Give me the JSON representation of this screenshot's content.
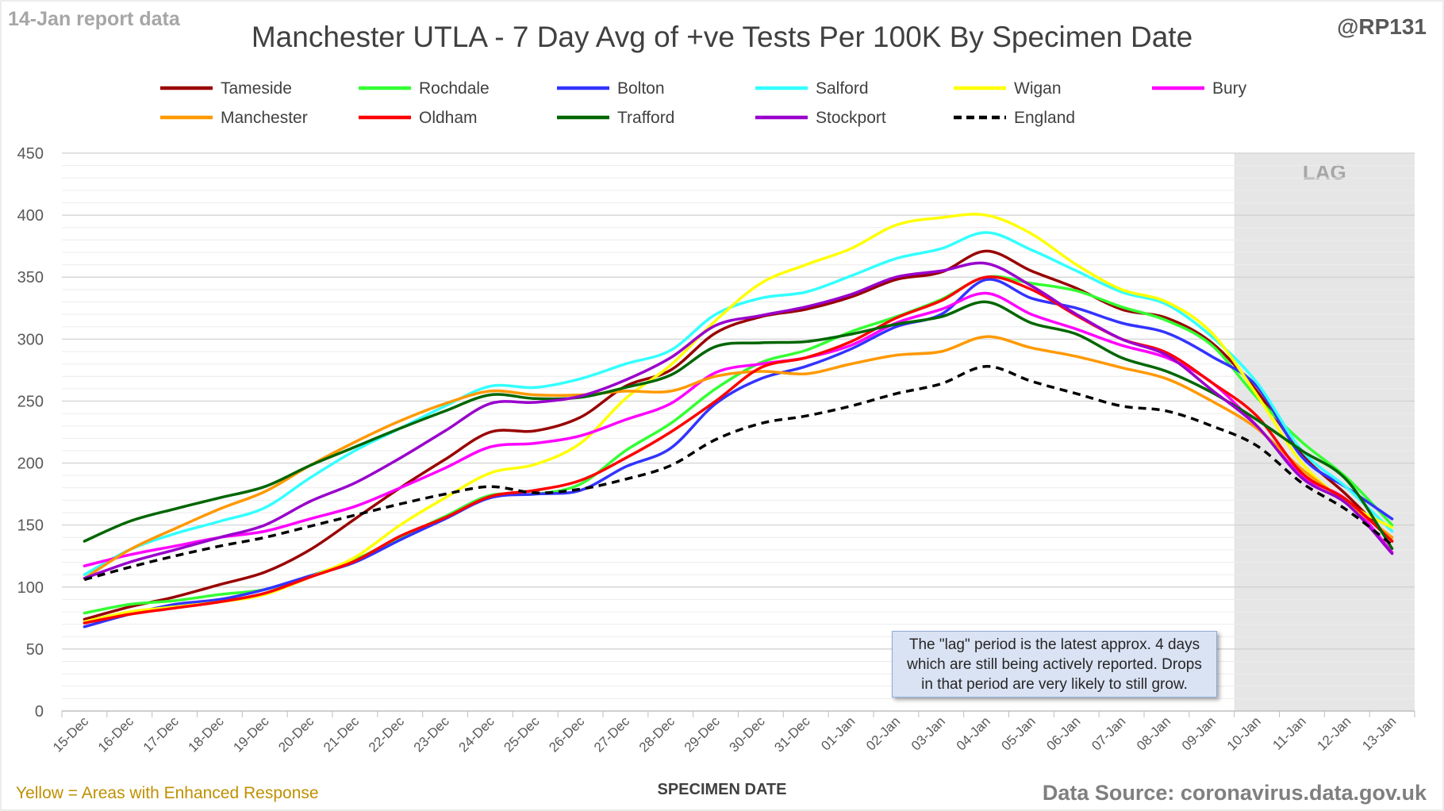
{
  "header": {
    "report_note": "14-Jan report data",
    "title": "Manchester UTLA - 7 Day Avg of +ve Tests Per 100K By Specimen Date",
    "handle": "@RP131"
  },
  "footer": {
    "enhanced_note": "Yellow = Areas with Enhanced Response",
    "source": "Data Source: coronavirus.data.gov.uk"
  },
  "annotation": {
    "lines": [
      "The \"lag\" period is the latest approx. 4 days",
      "which are still being actively reported.  Drops",
      "in that period are very likely to still grow."
    ]
  },
  "chart_data": {
    "type": "line",
    "title": "Manchester UTLA - 7 Day Avg of +ve Tests Per 100K By Specimen Date",
    "xlabel": "SPECIMEN DATE",
    "ylabel": "",
    "ylim": [
      0,
      450
    ],
    "yticks": [
      0,
      50,
      100,
      150,
      200,
      250,
      300,
      350,
      400,
      450
    ],
    "grid": true,
    "legend_position": "top",
    "lag_region": {
      "label": "LAG",
      "from": "10-Jan",
      "to": "13-Jan",
      "color": "#e6e6e6"
    },
    "categories": [
      "15-Dec",
      "16-Dec",
      "17-Dec",
      "18-Dec",
      "19-Dec",
      "20-Dec",
      "21-Dec",
      "22-Dec",
      "23-Dec",
      "24-Dec",
      "25-Dec",
      "26-Dec",
      "27-Dec",
      "28-Dec",
      "29-Dec",
      "30-Dec",
      "31-Dec",
      "01-Jan",
      "02-Jan",
      "03-Jan",
      "04-Jan",
      "05-Jan",
      "06-Jan",
      "07-Jan",
      "08-Jan",
      "09-Jan",
      "10-Jan",
      "11-Jan",
      "12-Jan",
      "13-Jan"
    ],
    "series": [
      {
        "name": "Tameside",
        "color": "#990000",
        "dashed": false,
        "values": [
          74,
          84,
          92,
          102,
          112,
          130,
          155,
          180,
          203,
          225,
          226,
          237,
          262,
          275,
          305,
          318,
          324,
          334,
          348,
          354,
          371,
          355,
          341,
          324,
          317,
          297,
          258,
          207,
          174,
          137
        ]
      },
      {
        "name": "Rochdale",
        "color": "#33ff33",
        "dashed": false,
        "values": [
          79,
          86,
          89,
          94,
          98,
          109,
          122,
          140,
          157,
          174,
          175,
          183,
          210,
          232,
          260,
          281,
          291,
          306,
          318,
          332,
          350,
          345,
          339,
          326,
          315,
          295,
          253,
          217,
          188,
          150
        ]
      },
      {
        "name": "Bolton",
        "color": "#3333ff",
        "dashed": false,
        "values": [
          68,
          78,
          86,
          90,
          98,
          109,
          120,
          138,
          155,
          172,
          175,
          178,
          197,
          212,
          248,
          268,
          278,
          292,
          310,
          320,
          348,
          333,
          325,
          313,
          305,
          286,
          262,
          205,
          180,
          155
        ]
      },
      {
        "name": "Salford",
        "color": "#33ffff",
        "dashed": false,
        "values": [
          110,
          130,
          143,
          153,
          164,
          188,
          210,
          228,
          246,
          262,
          261,
          268,
          280,
          291,
          320,
          333,
          338,
          351,
          365,
          373,
          386,
          372,
          355,
          338,
          328,
          302,
          265,
          210,
          180,
          145
        ]
      },
      {
        "name": "Wigan",
        "color": "#ffff00",
        "dashed": false,
        "values": [
          72,
          80,
          84,
          88,
          94,
          108,
          124,
          150,
          172,
          192,
          199,
          216,
          252,
          279,
          315,
          345,
          360,
          373,
          392,
          398,
          400,
          385,
          360,
          340,
          330,
          305,
          255,
          200,
          168,
          148
        ]
      },
      {
        "name": "Bury",
        "color": "#ff00ff",
        "dashed": false,
        "values": [
          117,
          126,
          133,
          140,
          145,
          155,
          165,
          180,
          196,
          213,
          216,
          222,
          235,
          248,
          273,
          280,
          285,
          295,
          313,
          324,
          337,
          320,
          308,
          295,
          285,
          265,
          230,
          190,
          170,
          128
        ]
      },
      {
        "name": "Manchester",
        "color": "#ff9900",
        "dashed": false,
        "values": [
          107,
          130,
          147,
          163,
          177,
          198,
          217,
          234,
          248,
          258,
          255,
          255,
          258,
          258,
          270,
          274,
          272,
          280,
          287,
          290,
          302,
          293,
          286,
          277,
          268,
          250,
          228,
          195,
          168,
          140
        ]
      },
      {
        "name": "Oldham",
        "color": "#ff0000",
        "dashed": false,
        "values": [
          71,
          78,
          83,
          88,
          95,
          108,
          121,
          141,
          156,
          173,
          178,
          186,
          204,
          225,
          250,
          277,
          285,
          298,
          317,
          331,
          350,
          340,
          319,
          300,
          289,
          265,
          238,
          192,
          170,
          137
        ]
      },
      {
        "name": "Trafford",
        "color": "#006600",
        "dashed": false,
        "values": [
          137,
          153,
          163,
          172,
          181,
          198,
          213,
          228,
          242,
          255,
          252,
          253,
          261,
          271,
          294,
          297,
          298,
          304,
          312,
          318,
          330,
          313,
          304,
          285,
          274,
          257,
          235,
          210,
          186,
          131
        ]
      },
      {
        "name": "Stockport",
        "color": "#9900cc",
        "dashed": false,
        "values": [
          107,
          120,
          130,
          140,
          150,
          169,
          184,
          204,
          226,
          248,
          249,
          254,
          267,
          285,
          311,
          319,
          326,
          336,
          350,
          355,
          361,
          343,
          320,
          300,
          287,
          259,
          230,
          188,
          167,
          127
        ]
      },
      {
        "name": "England",
        "color": "#000000",
        "dashed": true,
        "values": [
          106,
          116,
          125,
          133,
          140,
          149,
          158,
          167,
          175,
          181,
          176,
          179,
          187,
          198,
          219,
          232,
          238,
          246,
          256,
          264,
          278,
          266,
          256,
          246,
          242,
          230,
          214,
          184,
          162,
          134
        ]
      }
    ]
  }
}
